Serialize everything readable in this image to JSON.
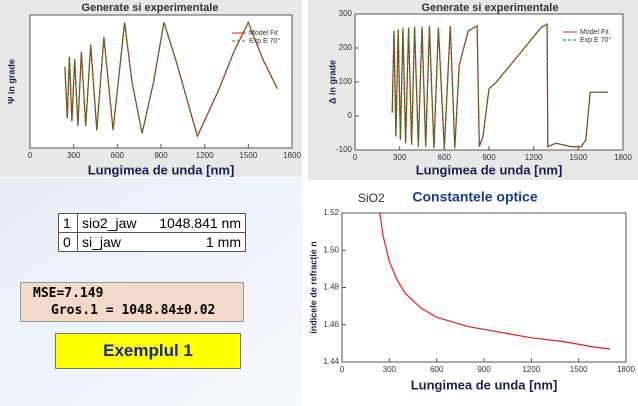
{
  "chart_data": [
    {
      "type": "line",
      "title": "Generate si experimentale",
      "xlabel": "Lungimea de unda [nm]",
      "ylabel": "Ψ in grade",
      "x": [
        240,
        256,
        271,
        288,
        307,
        329,
        353,
        383,
        417,
        459,
        508,
        571,
        650,
        700,
        770,
        850,
        920,
        1000,
        1150,
        1300,
        1400,
        1500,
        1600,
        1700
      ],
      "series": [
        {
          "name": "Model Fit",
          "color": "#e02020",
          "dashed": false,
          "values": [
            55,
            20,
            62,
            18,
            60,
            15,
            65,
            15,
            70,
            12,
            75,
            12,
            85,
            45,
            10,
            45,
            85,
            60,
            8,
            40,
            65,
            85,
            60,
            40
          ]
        },
        {
          "name": "Exp E 70°",
          "color": "#208020",
          "dashed": true,
          "values": [
            55,
            20,
            62,
            18,
            60,
            15,
            65,
            15,
            70,
            12,
            75,
            12,
            85,
            45,
            10,
            45,
            85,
            60,
            8,
            40,
            65,
            85,
            60,
            40
          ]
        }
      ],
      "xlim": [
        0,
        1800
      ],
      "xticks": [
        0,
        300,
        600,
        900,
        1200,
        1500,
        1800
      ],
      "ylim": [
        0,
        90
      ],
      "legend": "upper right"
    },
    {
      "type": "line",
      "title": "Generate si experimentale",
      "xlabel": "Lungimea de unda [nm]",
      "ylabel": "Δ in grade",
      "x": [
        250,
        262,
        275,
        290,
        305,
        322,
        340,
        360,
        380,
        400,
        425,
        450,
        475,
        500,
        530,
        560,
        600,
        640,
        670,
        700,
        760,
        820,
        835,
        860,
        900,
        950,
        1100,
        1250,
        1290,
        1295,
        1350,
        1450,
        1520,
        1550,
        1580,
        1700
      ],
      "series": [
        {
          "name": "Model Fit",
          "color": "#e02020",
          "dashed": false,
          "values": [
            10,
            250,
            -60,
            255,
            -70,
            258,
            -80,
            260,
            -85,
            262,
            -90,
            262,
            -90,
            265,
            -95,
            260,
            -95,
            265,
            -95,
            150,
            250,
            265,
            -90,
            -60,
            80,
            100,
            180,
            260,
            270,
            -90,
            -80,
            -90,
            -90,
            -70,
            70,
            70
          ]
        },
        {
          "name": "Exp E 70°",
          "color": "#208020",
          "dashed": true,
          "values": [
            10,
            250,
            -60,
            255,
            -70,
            258,
            -80,
            260,
            -85,
            262,
            -90,
            262,
            -90,
            265,
            -95,
            260,
            -95,
            265,
            -95,
            150,
            250,
            265,
            -90,
            -60,
            80,
            100,
            180,
            260,
            270,
            -90,
            -80,
            -90,
            -90,
            -70,
            70,
            70
          ]
        }
      ],
      "xlim": [
        0,
        1800
      ],
      "xticks": [
        0,
        300,
        600,
        900,
        1200,
        1500,
        1800
      ],
      "ylim": [
        -100,
        300
      ],
      "yticks": [
        -100,
        0,
        100,
        200,
        300
      ],
      "legend": "upper right"
    },
    {
      "type": "line",
      "title": "Constantele optice",
      "annotation": "SiO2",
      "xlabel": "Lungimea de unda [nm]",
      "ylabel": "indicele de refracție n",
      "x": [
        240,
        260,
        300,
        350,
        400,
        500,
        600,
        800,
        1000,
        1200,
        1400,
        1600,
        1700
      ],
      "series": [
        {
          "color": "#e02020",
          "dashed": false,
          "values": [
            1.52,
            1.508,
            1.494,
            1.484,
            1.477,
            1.469,
            1.464,
            1.459,
            1.456,
            1.453,
            1.451,
            1.448,
            1.447
          ]
        }
      ],
      "xlim": [
        0,
        1800
      ],
      "xticks": [
        0,
        300,
        600,
        900,
        1200,
        1500,
        1800
      ],
      "ylim": [
        1.44,
        1.52
      ],
      "yticks": [
        1.44,
        1.46,
        1.48,
        {
          "value": 1.5,
          "label": "1.50"
        },
        1.52
      ]
    }
  ],
  "layer_table": {
    "rows": [
      [
        "1",
        "sio2_jaw",
        "1048.841 nm"
      ],
      [
        "0",
        "si_jaw",
        "1 mm"
      ]
    ]
  },
  "fit_box": {
    "mse": "MSE=7.149",
    "thickness": "Gros.1 = 1048.84±0.02"
  },
  "example_button": "Exemplul 1"
}
